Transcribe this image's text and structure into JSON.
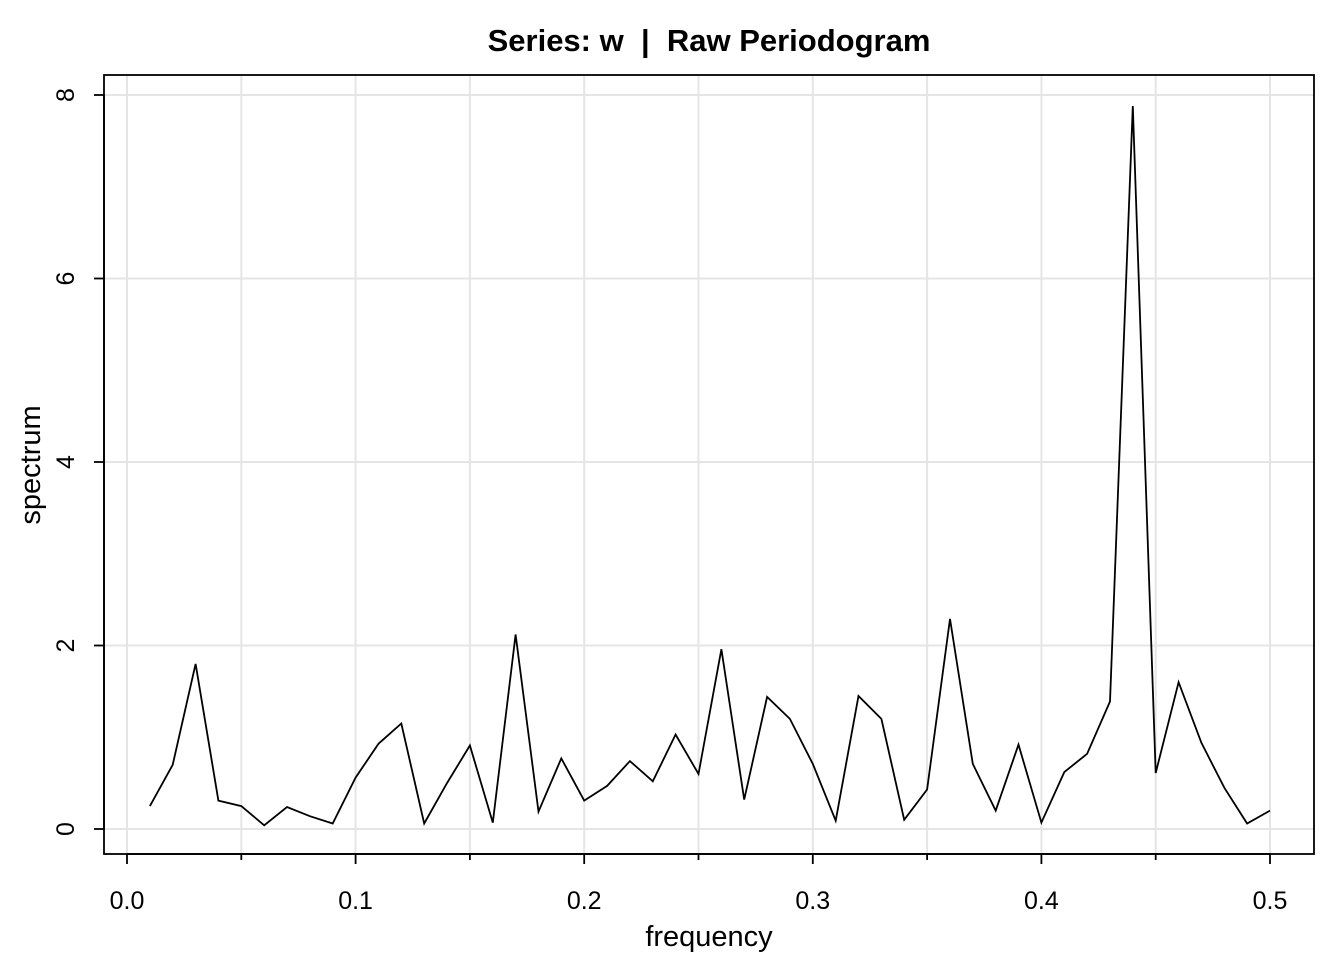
{
  "chart_data": {
    "type": "line",
    "title": "Series: w  |  Raw Periodogram",
    "xlabel": "frequency",
    "ylabel": "spectrum",
    "xlim": [
      0.0,
      0.5
    ],
    "ylim": [
      0,
      8
    ],
    "grid": true,
    "x_ticks": [
      0.0,
      0.1,
      0.2,
      0.3,
      0.4,
      0.5
    ],
    "x_tick_labels": [
      "0.0",
      "0.1",
      "0.2",
      "0.3",
      "0.4",
      "0.5"
    ],
    "x_minor_ticks": [
      0.05,
      0.15,
      0.25,
      0.35,
      0.45
    ],
    "y_ticks": [
      0,
      2,
      4,
      6,
      8
    ],
    "y_tick_labels": [
      "0",
      "2",
      "4",
      "6",
      "8"
    ],
    "series": [
      {
        "x": [
          0.01,
          0.02,
          0.03,
          0.04,
          0.05,
          0.06,
          0.07,
          0.08,
          0.09,
          0.1,
          0.11,
          0.12,
          0.13,
          0.14,
          0.15,
          0.16,
          0.17,
          0.18,
          0.19,
          0.2,
          0.21,
          0.22,
          0.23,
          0.24,
          0.25,
          0.26,
          0.27,
          0.28,
          0.29,
          0.3,
          0.31,
          0.32,
          0.33,
          0.34,
          0.35,
          0.36,
          0.37,
          0.38,
          0.39,
          0.4,
          0.41,
          0.42,
          0.43,
          0.44,
          0.45,
          0.46,
          0.47,
          0.48,
          0.49,
          0.5
        ],
        "y": [
          0.25,
          0.7,
          1.8,
          0.31,
          0.25,
          0.04,
          0.24,
          0.14,
          0.06,
          0.56,
          0.93,
          1.15,
          0.06,
          0.5,
          0.91,
          0.07,
          2.12,
          0.19,
          0.77,
          0.31,
          0.47,
          0.74,
          0.52,
          1.03,
          0.6,
          1.96,
          0.32,
          1.44,
          1.2,
          0.71,
          0.09,
          1.45,
          1.2,
          0.1,
          0.43,
          2.29,
          0.71,
          0.2,
          0.92,
          0.07,
          0.62,
          0.82,
          1.39,
          7.88,
          0.61,
          1.6,
          0.94,
          0.45,
          0.06,
          0.2
        ]
      }
    ],
    "colors": {
      "line": "#000000",
      "grid": "#e5e5e5",
      "axis": "#000000"
    }
  }
}
